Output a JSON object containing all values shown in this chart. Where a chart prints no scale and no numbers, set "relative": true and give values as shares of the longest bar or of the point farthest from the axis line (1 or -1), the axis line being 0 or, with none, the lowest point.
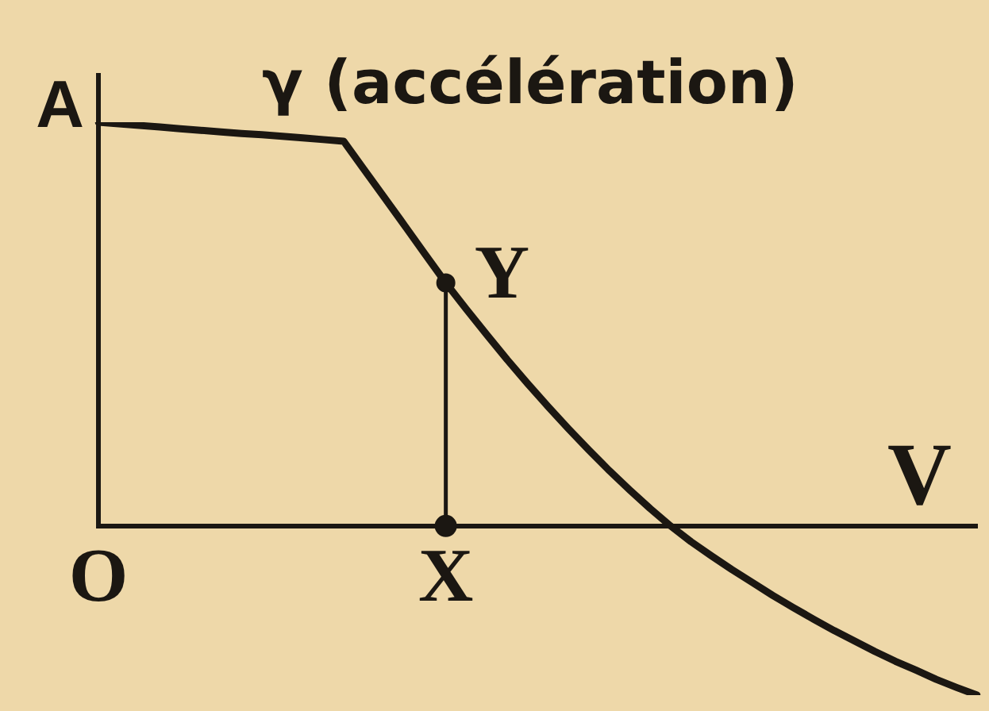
{
  "chart_data": {
    "type": "line",
    "relative": true,
    "ylabel": "γ (accélération)",
    "xlabel": "V",
    "grid": false,
    "categories": [
      "O",
      null,
      null,
      null,
      null,
      null,
      null,
      null,
      null,
      null,
      null,
      null,
      null,
      null,
      null,
      null,
      null,
      "X",
      null,
      null,
      null,
      null,
      null,
      null,
      null,
      null,
      null,
      null,
      null,
      null,
      null,
      null,
      null,
      null,
      null,
      null,
      null,
      null,
      null,
      null,
      null,
      null,
      null,
      null
    ],
    "series": [
      {
        "color": "#1b1712",
        "values": [
          1,
          0.996,
          0.992,
          0.988,
          0.984,
          0.98,
          0.976,
          0.972,
          0.969,
          0.965,
          0.961,
          0.957,
          0.953,
          0.883,
          0.813,
          0.743,
          0.672,
          0.602,
          0.537,
          0.474,
          0.412,
          0.353,
          0.296,
          0.241,
          0.188,
          0.137,
          0.089,
          0.043,
          0,
          -0.039,
          -0.074,
          -0.108,
          -0.14,
          -0.172,
          -0.202,
          -0.231,
          -0.259,
          -0.285,
          -0.311,
          -0.335,
          -0.357,
          -0.38,
          -0.4,
          -0.419
        ]
      },
      {
        "name": "Y",
        "type": "lollipop",
        "color": "#1b1712",
        "values": [
          null,
          null,
          null,
          null,
          null,
          null,
          null,
          null,
          null,
          null,
          null,
          null,
          null,
          null,
          null,
          null,
          null,
          0.602,
          null,
          null,
          null,
          null,
          null,
          null,
          null,
          null,
          null,
          null,
          null,
          null,
          null,
          null,
          null,
          null,
          null,
          null,
          null,
          null,
          null,
          null,
          null,
          null,
          null,
          null
        ]
      },
      {
        "type": "scatter",
        "color": "#1b1712",
        "values": [
          null,
          null,
          null,
          null,
          null,
          null,
          null,
          null,
          null,
          null,
          null,
          null,
          null,
          null,
          null,
          null,
          null,
          0,
          null,
          null,
          null,
          null,
          null,
          null,
          null,
          null,
          null,
          null,
          null,
          null,
          null,
          null,
          null,
          null,
          null,
          null,
          null,
          null,
          null,
          null,
          null,
          null,
          null,
          null
        ]
      }
    ],
    "annotations": [
      "A"
    ]
  }
}
